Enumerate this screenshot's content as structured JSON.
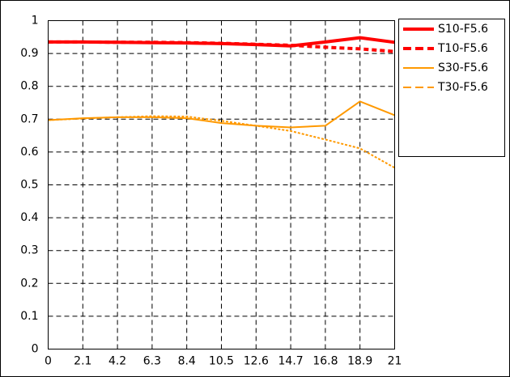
{
  "chart_data": {
    "type": "line",
    "x": [
      0,
      2.1,
      4.2,
      6.3,
      8.4,
      10.5,
      12.6,
      14.7,
      16.8,
      18.9,
      21
    ],
    "series": [
      {
        "name": "S10-F5.6",
        "color": "#ff0000",
        "style": "solid",
        "width": 4,
        "values": [
          0.935,
          0.935,
          0.934,
          0.933,
          0.932,
          0.93,
          0.927,
          0.923,
          0.935,
          0.948,
          0.934
        ]
      },
      {
        "name": "T10-F5.6",
        "color": "#ff0000",
        "style": "dashed",
        "width": 4,
        "values": [
          0.935,
          0.935,
          0.934,
          0.934,
          0.933,
          0.931,
          0.928,
          0.925,
          0.919,
          0.914,
          0.906
        ]
      },
      {
        "name": "S30-F5.6",
        "color": "#ff9900",
        "style": "solid",
        "width": 2,
        "values": [
          0.697,
          0.703,
          0.706,
          0.706,
          0.703,
          0.688,
          0.68,
          0.675,
          0.68,
          0.754,
          0.712
        ]
      },
      {
        "name": "T30-F5.6",
        "color": "#ff9900",
        "style": "dashed",
        "width": 2,
        "values": [
          0.697,
          0.702,
          0.706,
          0.709,
          0.708,
          0.695,
          0.68,
          0.664,
          0.638,
          0.611,
          0.552
        ]
      }
    ],
    "xlim": [
      0,
      21
    ],
    "xticks": [
      0,
      2.1,
      4.2,
      6.3,
      8.4,
      10.5,
      12.6,
      14.7,
      16.8,
      18.9,
      21
    ],
    "ylim": [
      0,
      1
    ],
    "yticks": [
      0,
      0.1,
      0.2,
      0.3,
      0.4,
      0.5,
      0.6,
      0.7,
      0.8,
      0.9,
      1
    ],
    "grid": true,
    "legend": "right"
  }
}
